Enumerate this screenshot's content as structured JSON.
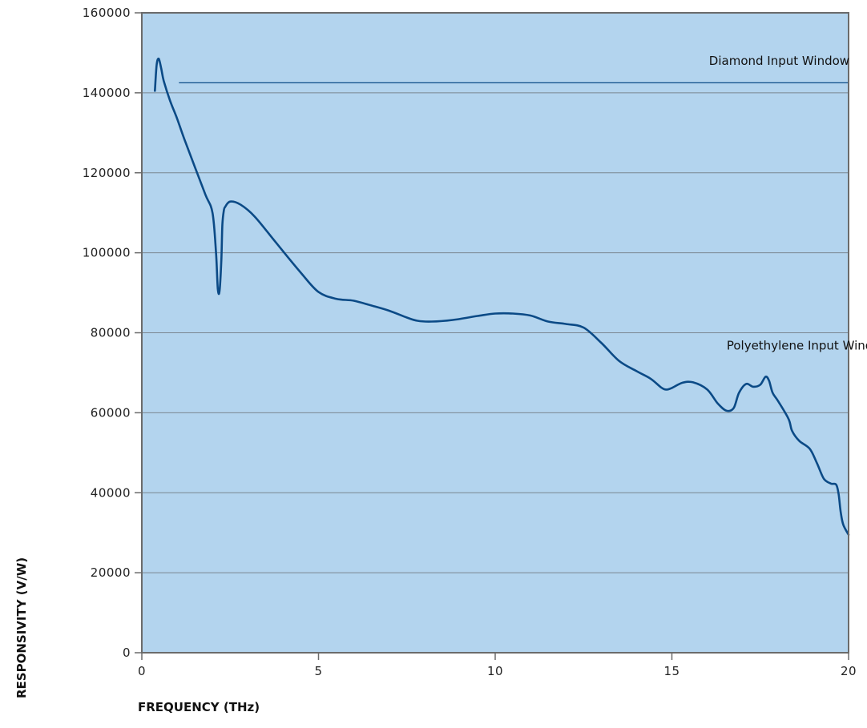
{
  "colors": {
    "plot_background": "#b3d4ee",
    "gridline": "#7a8690",
    "frame": "#6b6b6b",
    "series_line": "#0b4a86",
    "reference_line": "#0b4a86"
  },
  "chart_data": {
    "type": "line",
    "title": "",
    "xlabel": "FREQUENCY (THz)",
    "ylabel": "RESPONSIVITY (V/W)",
    "xlim": [
      0,
      20
    ],
    "ylim": [
      0,
      160000
    ],
    "grid": true,
    "x_ticks": [
      0,
      5,
      10,
      15,
      20
    ],
    "x_tick_labels": [
      "0",
      "5",
      "10",
      "15",
      "20"
    ],
    "y_ticks": [
      0,
      20000,
      40000,
      60000,
      80000,
      100000,
      120000,
      140000,
      160000
    ],
    "y_tick_labels": [
      "0",
      "20000",
      "40000",
      "60000",
      "80000",
      "100000",
      "120000",
      "140000",
      "160000"
    ],
    "series": [
      {
        "x": [
          0.37,
          0.42,
          0.48,
          0.55,
          0.62,
          0.8,
          1.0,
          1.2,
          1.5,
          1.8,
          2.0,
          2.1,
          2.15,
          2.2,
          2.25,
          2.28,
          2.32,
          2.36,
          2.5,
          2.8,
          3.2,
          3.8,
          4.5,
          5.0,
          5.5,
          6.0,
          6.5,
          7.0,
          7.5,
          7.8,
          8.2,
          8.8,
          9.5,
          10.0,
          10.5,
          11.0,
          11.5,
          12.0,
          12.5,
          13.0,
          13.5,
          14.0,
          14.4,
          14.7,
          14.85,
          15.0,
          15.3,
          15.6,
          16.0,
          16.3,
          16.55,
          16.75,
          16.9,
          17.1,
          17.3,
          17.5,
          17.65,
          17.75,
          17.85,
          18.0,
          18.3,
          18.4,
          18.6,
          18.9,
          19.1,
          19.3,
          19.5,
          19.65,
          19.72,
          19.78,
          19.85,
          20.0
        ],
        "values": [
          140500,
          147000,
          148500,
          146000,
          143000,
          138000,
          133500,
          128500,
          121500,
          114500,
          110000,
          100000,
          91000,
          90500,
          98000,
          107000,
          110500,
          111500,
          112800,
          112000,
          109000,
          102500,
          95000,
          90200,
          88500,
          88000,
          86800,
          85500,
          83800,
          83000,
          82800,
          83200,
          84200,
          84800,
          84800,
          84300,
          82800,
          82200,
          81300,
          77500,
          73000,
          70400,
          68500,
          66300,
          65800,
          66200,
          67500,
          67600,
          65800,
          62300,
          60500,
          61200,
          65000,
          67200,
          66500,
          67000,
          69000,
          68000,
          65000,
          63000,
          58500,
          55500,
          53000,
          51000,
          47500,
          43500,
          42300,
          42000,
          39500,
          35000,
          32000,
          29500
        ]
      }
    ],
    "reference_lines": [
      {
        "label": "Diamond Input Window",
        "y": 142500,
        "x_start": 1.05,
        "x_end": 20
      }
    ],
    "annotations": [
      {
        "text": "Diamond Input Window",
        "x": 16.05,
        "y": 147000
      },
      {
        "text": "Polyethylene Input Window",
        "x": 16.55,
        "y": 75800
      }
    ]
  }
}
